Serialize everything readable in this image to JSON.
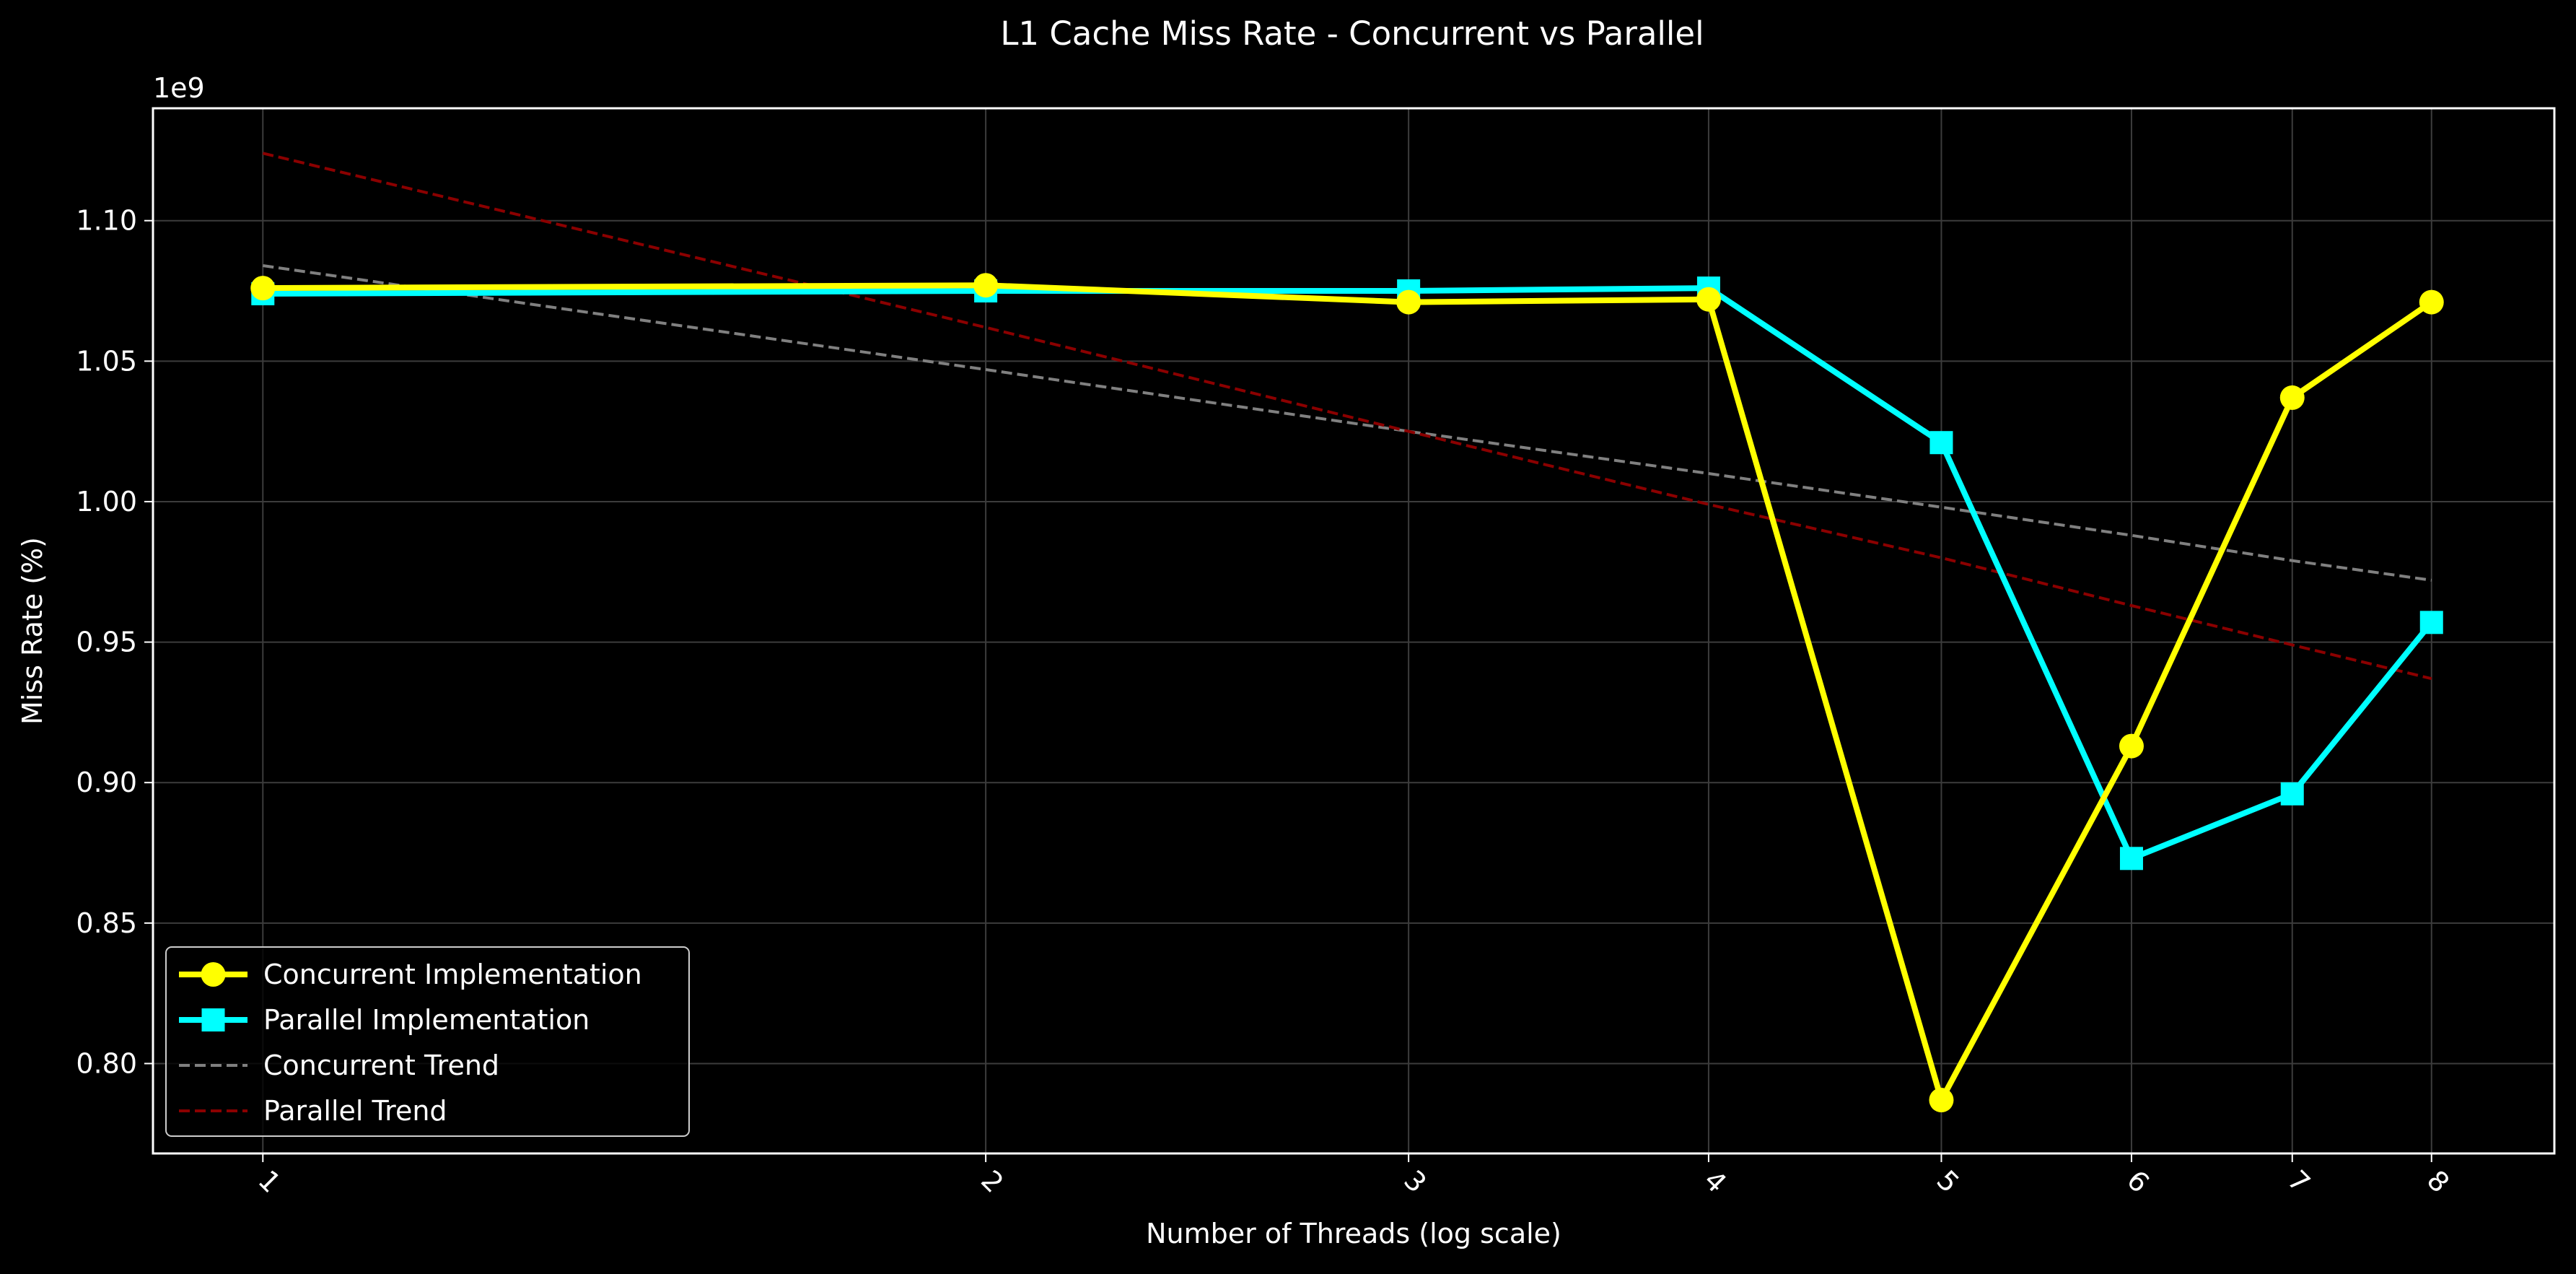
{
  "chart_data": {
    "type": "line",
    "title": "L1 Cache Miss Rate - Concurrent vs Parallel",
    "xlabel": "Number of Threads (log scale)",
    "ylabel": "Miss Rate (%)",
    "y_offset_label": "1e9",
    "x_scale": "log",
    "x": [
      1,
      2,
      3,
      4,
      5,
      6,
      7,
      8
    ],
    "x_tick_labels": [
      "1",
      "2",
      "3",
      "4",
      "5",
      "6",
      "7",
      "8"
    ],
    "x_tick_rotation_deg": 45,
    "xlim": [
      0.9,
      9
    ],
    "ylim": [
      0.768,
      1.14
    ],
    "y_ticks": [
      0.8,
      0.85,
      0.9,
      0.95,
      1.0,
      1.05,
      1.1
    ],
    "y_tick_labels": [
      "0.80",
      "0.85",
      "0.90",
      "0.95",
      "1.00",
      "1.05",
      "1.10"
    ],
    "grid": true,
    "legend_position": "lower-left",
    "series": [
      {
        "name": "Concurrent Implementation",
        "color": "#ffff00",
        "marker": "circle",
        "line_style": "solid",
        "values": [
          1.076,
          1.077,
          1.071,
          1.072,
          0.787,
          0.913,
          1.037,
          1.071
        ]
      },
      {
        "name": "Parallel Implementation",
        "color": "#00ffff",
        "marker": "square",
        "line_style": "solid",
        "values": [
          1.074,
          1.075,
          1.075,
          1.076,
          1.021,
          0.873,
          0.896,
          0.957
        ]
      },
      {
        "name": "Concurrent Trend",
        "color": "#808080",
        "marker": "none",
        "line_style": "dashed",
        "values": [
          1.084,
          1.047,
          1.025,
          1.01,
          0.998,
          0.988,
          0.979,
          0.972
        ]
      },
      {
        "name": "Parallel Trend",
        "color": "#8b0000",
        "marker": "none",
        "line_style": "dashed",
        "values": [
          1.124,
          1.062,
          1.025,
          0.999,
          0.98,
          0.963,
          0.949,
          0.937
        ]
      }
    ]
  },
  "colors": {
    "background": "#000000",
    "axes_frame": "#ffffff",
    "grid": "#3c3c3c",
    "text": "#ffffff"
  }
}
